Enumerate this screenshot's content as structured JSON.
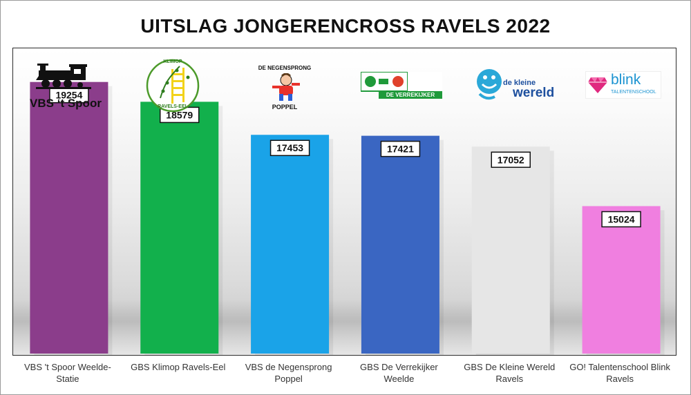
{
  "chart_data": {
    "type": "bar",
    "title": "UITSLAG JONGERENCROSS RAVELS 2022",
    "categories": [
      "VBS 't Spoor Weelde-Statie",
      "GBS Klimop Ravels-Eel",
      "VBS de Negensprong Poppel",
      "GBS De Verrekijker Weelde",
      "GBS De Kleine Wereld Ravels",
      "GO! Talentenschool Blink Ravels"
    ],
    "values": [
      19254,
      18579,
      17453,
      17421,
      17052,
      15024
    ],
    "colors": [
      "#8b3d8b",
      "#12b04c",
      "#1aa3e8",
      "#3a66c2",
      "#e6e6e6",
      "#f07fe0"
    ],
    "ylim": [
      10000,
      20400
    ],
    "xlabel": "",
    "ylabel": "",
    "grid": false,
    "legend": "none"
  },
  "logos": {
    "spoor": {
      "caption": "VBS ‘t Spoor"
    },
    "klimop": {
      "top": "KLIMOP",
      "bottom": "RAVELS-EEL"
    },
    "negensprong": {
      "top": "DE NEGENSPRONG",
      "bottom": "POPPEL"
    },
    "verrekijker": {
      "text": "DE VERREKIJKER"
    },
    "kleine_wereld": {
      "small": "de kleine",
      "big": "wereld"
    },
    "blink": {
      "word": "blink",
      "sub": "TALENTENSCHOOL"
    }
  }
}
